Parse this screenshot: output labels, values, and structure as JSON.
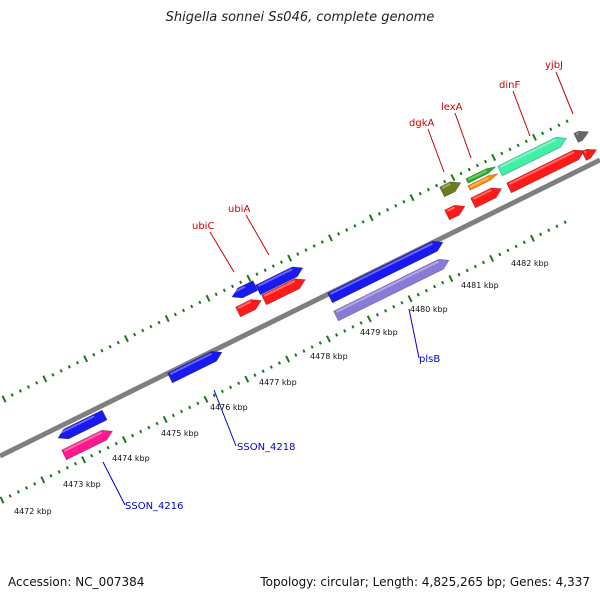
{
  "title": "Shigella sonnei Ss046, complete genome",
  "accession_text": "Accession: NC_007384",
  "topology_text": "Topology: circular; Length: 4,825,265 bp; Genes: 4,337",
  "colors": {
    "backbone": "#8a8a8a",
    "tick": "#1a7a1a",
    "top_label": "#cc0000",
    "bottom_label": "#0000cc"
  },
  "scale_labels": [
    "4472 kbp",
    "4473 kbp",
    "4474 kbp",
    "4475 kbp",
    "4476 kbp",
    "4477 kbp",
    "4478 kbp",
    "4479 kbp",
    "4480 kbp",
    "4481 kbp",
    "4482 kbp"
  ],
  "top_gene_labels": [
    "ubiC",
    "ubiA",
    "dgkA",
    "lexA",
    "dinF",
    "yjbJ"
  ],
  "bottom_gene_labels": [
    "SSON_4216",
    "SSON_4218",
    "plsB"
  ]
}
